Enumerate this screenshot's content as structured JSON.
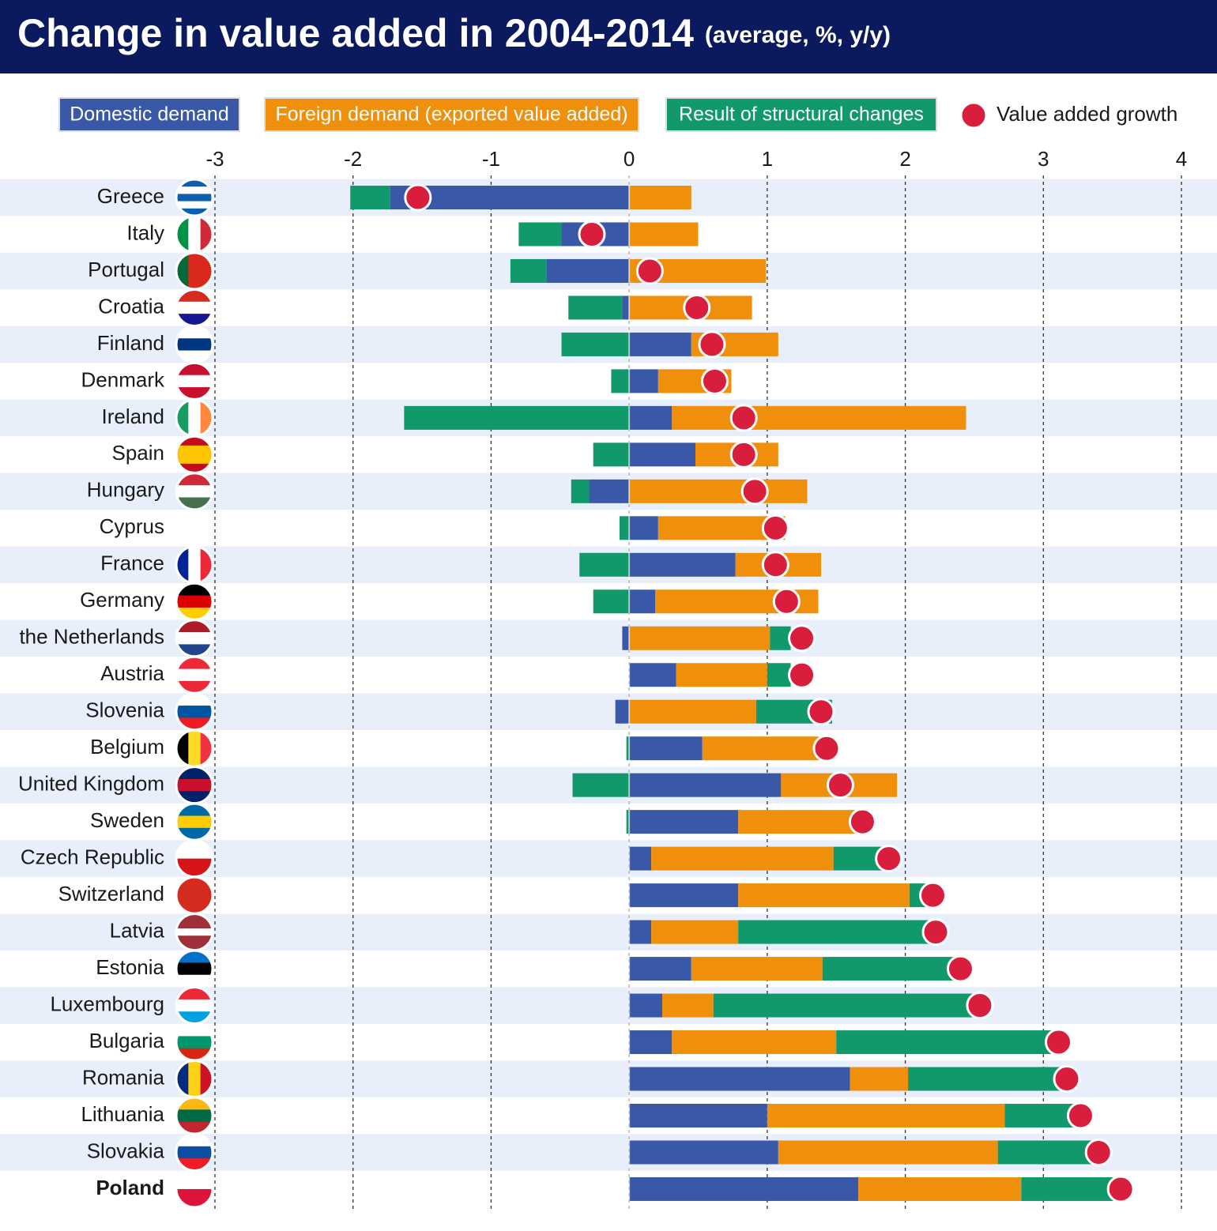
{
  "chart_data": {
    "type": "diverging_stacked_bar",
    "title": "Change in value added in 2004-2014",
    "subtitle": "(average, %, y/y)",
    "categories": [
      "Greece",
      "Italy",
      "Portugal",
      "Croatia",
      "Finland",
      "Denmark",
      "Ireland",
      "Spain",
      "Hungary",
      "Cyprus",
      "France",
      "Germany",
      "the Netherlands",
      "Austria",
      "Slovenia",
      "Belgium",
      "United Kingdom",
      "Sweden",
      "Czech Republic",
      "Switzerland",
      "Latvia",
      "Estonia",
      "Luxembourg",
      "Bulgaria",
      "Romania",
      "Lithuania",
      "Slovakia",
      "Poland"
    ],
    "series": [
      {
        "name": "Domestic demand",
        "color": "#3a58a8",
        "values": [
          -1.73,
          -0.49,
          -0.6,
          -0.05,
          0.45,
          0.21,
          0.31,
          0.48,
          -0.29,
          0.21,
          0.77,
          0.19,
          -0.05,
          0.34,
          -0.1,
          0.53,
          1.1,
          0.79,
          0.16,
          0.79,
          0.16,
          0.45,
          0.24,
          0.31,
          1.6,
          1.0,
          1.08,
          1.66
        ]
      },
      {
        "name": "Foreign demand (exported value added)",
        "color": "#f08f0c",
        "values": [
          0.45,
          0.5,
          0.99,
          0.89,
          0.63,
          0.53,
          2.13,
          0.6,
          1.29,
          0.92,
          0.62,
          1.18,
          1.02,
          0.66,
          0.92,
          0.87,
          0.84,
          0.89,
          1.32,
          1.24,
          0.63,
          0.95,
          0.37,
          1.19,
          0.42,
          1.72,
          1.59,
          1.18
        ]
      },
      {
        "name": "Result of structural changes",
        "color": "#11986b",
        "values": [
          -0.29,
          -0.31,
          -0.26,
          -0.39,
          -0.49,
          -0.13,
          -1.63,
          -0.26,
          -0.13,
          -0.07,
          -0.36,
          -0.26,
          0.15,
          0.17,
          0.55,
          -0.02,
          -0.41,
          -0.02,
          0.44,
          0.17,
          1.47,
          1.04,
          1.93,
          1.58,
          1.12,
          0.52,
          0.71,
          0.67
        ]
      }
    ],
    "points": {
      "name": "Value added growth",
      "color": "#d81e3c",
      "values": [
        -1.53,
        -0.27,
        0.15,
        0.49,
        0.6,
        0.62,
        0.83,
        0.83,
        0.91,
        1.06,
        1.06,
        1.14,
        1.25,
        1.25,
        1.39,
        1.43,
        1.53,
        1.69,
        1.88,
        2.2,
        2.22,
        2.4,
        2.54,
        3.11,
        3.17,
        3.27,
        3.4,
        3.56
      ]
    },
    "xlim": [
      -3,
      4
    ],
    "xticks": [
      -3,
      -2,
      -1,
      0,
      1,
      2,
      3,
      4
    ],
    "grid": true
  }
}
